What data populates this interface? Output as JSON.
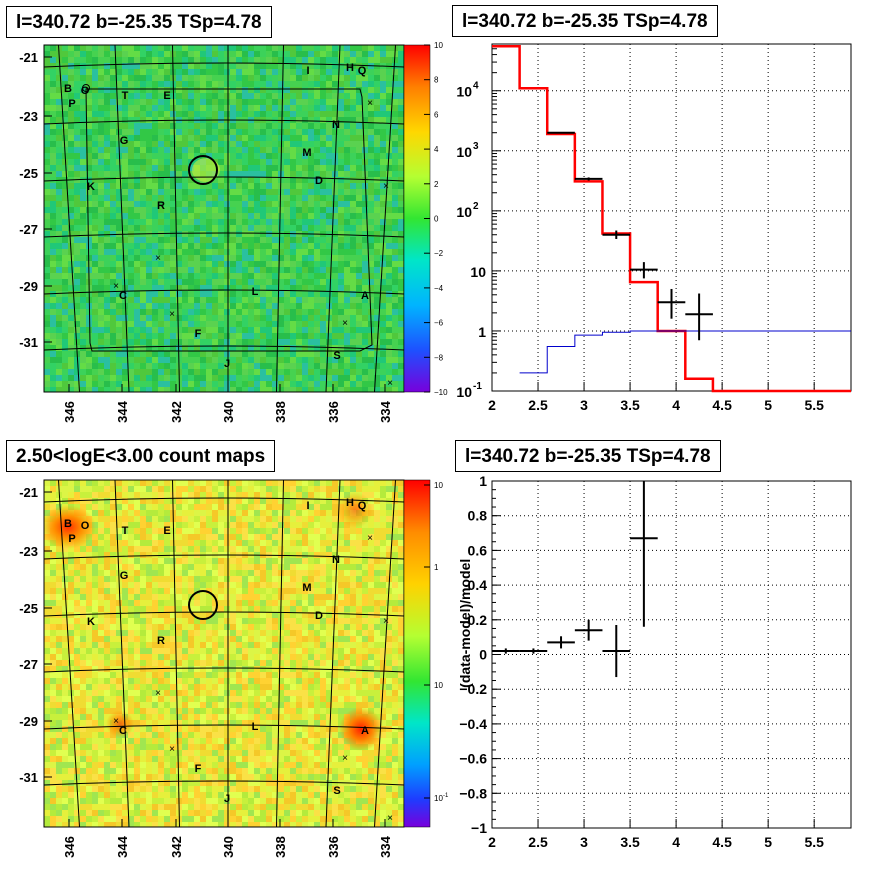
{
  "panels": {
    "tl_title": "l=340.72 b=-25.35 TSp=4.78",
    "tr_title": "l=340.72 b=-25.35 TSp=4.78",
    "bl_title": "2.50<logE<3.00 count maps",
    "br_title": "l=340.72 b=-25.35 TSp=4.78"
  },
  "maps": {
    "x_ticks": [
      "346",
      "344",
      "342",
      "340",
      "338",
      "336",
      "334"
    ],
    "y_ticks": [
      "-21",
      "-23",
      "-25",
      "-27",
      "-29",
      "-31"
    ],
    "top_colorbar": [
      "10",
      "8",
      "6",
      "4",
      "2",
      "0",
      "−2",
      "−4",
      "−6",
      "−8",
      "−10"
    ],
    "bottom_colorbar": [
      "10",
      "1",
      "10",
      "10"
    ],
    "bottom_colorbar_exp": [
      "",
      "",
      "",
      "-1"
    ],
    "sources": [
      "I",
      "H",
      "Q",
      "B",
      "O",
      "P",
      "T",
      "E",
      "N",
      "G",
      "M",
      "D",
      "K",
      "R",
      "C",
      "A",
      "L",
      "F",
      "S",
      "J"
    ]
  },
  "chart_data": [
    {
      "type": "line",
      "title": "l=340.72 b=-25.35 TSp=4.78",
      "yscale": "log",
      "xlim": [
        2,
        5.9
      ],
      "ylim": [
        0.1,
        60000
      ],
      "x_ticks": [
        "2",
        "2.5",
        "3",
        "3.5",
        "4",
        "4.5",
        "5",
        "5.5"
      ],
      "y_ticks": [
        "10^-1",
        "1",
        "10",
        "10^2",
        "10^3",
        "10^4"
      ],
      "grid": true,
      "series": [
        {
          "color": "#ff0000",
          "style": "step",
          "edges": [
            2,
            2.3,
            2.6,
            2.9,
            3.2,
            3.5,
            3.8,
            4.1,
            4.4,
            4.7,
            5.0,
            5.9
          ],
          "values": [
            55000,
            11000,
            1900,
            310,
            42,
            6.5,
            1.0,
            0.16,
            0.1,
            0.1,
            0.1
          ]
        },
        {
          "color": "#0000cc",
          "style": "step",
          "edges": [
            2.3,
            2.6,
            2.9,
            3.2,
            3.5,
            3.8,
            4.1,
            4.4,
            5.0,
            5.9
          ],
          "values": [
            0.2,
            0.55,
            0.85,
            0.95,
            1.0,
            1.0,
            1.0,
            1.0,
            1.0
          ]
        },
        {
          "color": "#000000",
          "style": "errorbar",
          "points": [
            {
              "x": 2.75,
              "y": 2000,
              "xerr": 0.15,
              "lo": 1950,
              "hi": 2050
            },
            {
              "x": 3.05,
              "y": 340,
              "xerr": 0.15,
              "lo": 320,
              "hi": 360
            },
            {
              "x": 3.35,
              "y": 40,
              "xerr": 0.15,
              "lo": 34,
              "hi": 47
            },
            {
              "x": 3.65,
              "y": 10.5,
              "xerr": 0.15,
              "lo": 7.5,
              "hi": 14
            },
            {
              "x": 3.95,
              "y": 3.0,
              "xerr": 0.15,
              "lo": 1.6,
              "hi": 5.0
            },
            {
              "x": 4.25,
              "y": 1.9,
              "xerr": 0.15,
              "lo": 0.7,
              "hi": 4.2
            }
          ]
        }
      ]
    },
    {
      "type": "scatter",
      "title": "l=340.72 b=-25.35 TSp=4.78",
      "ylabel": "(data-model)/model",
      "xlim": [
        2,
        5.9
      ],
      "ylim": [
        -1,
        1
      ],
      "x_ticks": [
        "2",
        "2.5",
        "3",
        "3.5",
        "4",
        "4.5",
        "5",
        "5.5"
      ],
      "y_ticks": [
        "−1",
        "−0.8",
        "−0.6",
        "−0.4",
        "−0.2",
        "0",
        "0.2",
        "0.4",
        "0.6",
        "0.8",
        "1"
      ],
      "grid": true,
      "points": [
        {
          "x": 2.15,
          "y": 0.02,
          "xerr": 0.15,
          "yerr": 0.015
        },
        {
          "x": 2.45,
          "y": 0.02,
          "xerr": 0.15,
          "yerr": 0.015
        },
        {
          "x": 2.75,
          "y": 0.07,
          "xerr": 0.15,
          "yerr": 0.035
        },
        {
          "x": 3.05,
          "y": 0.14,
          "xerr": 0.15,
          "yerr": 0.06
        },
        {
          "x": 3.35,
          "y": 0.02,
          "xerr": 0.15,
          "yerr": 0.15
        },
        {
          "x": 3.65,
          "y": 0.67,
          "xerr": 0.15,
          "yerr": 0.51
        }
      ]
    }
  ]
}
